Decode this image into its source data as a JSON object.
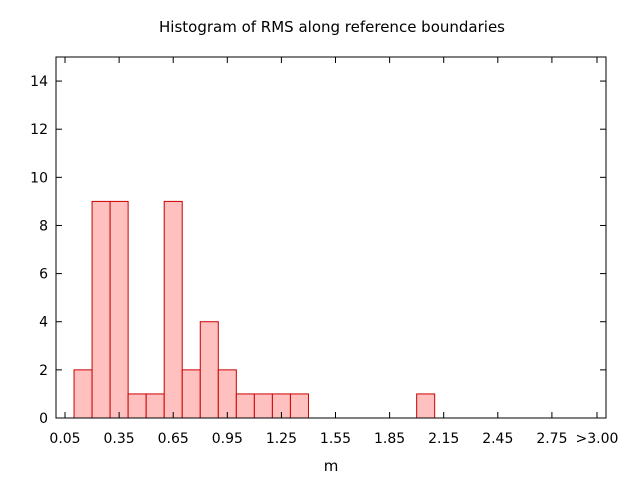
{
  "chart_data": {
    "type": "bar",
    "title": "Histogram of RMS along reference boundaries",
    "xlabel": "m",
    "ylabel": "",
    "xlim": [
      0.0,
      3.05
    ],
    "ylim": [
      0,
      15
    ],
    "x_ticks": [
      {
        "value": 0.05,
        "label": "0.05"
      },
      {
        "value": 0.35,
        "label": "0.35"
      },
      {
        "value": 0.65,
        "label": "0.65"
      },
      {
        "value": 0.95,
        "label": "0.95"
      },
      {
        "value": 1.25,
        "label": "1.25"
      },
      {
        "value": 1.55,
        "label": "1.55"
      },
      {
        "value": 1.85,
        "label": "1.85"
      },
      {
        "value": 2.15,
        "label": "2.15"
      },
      {
        "value": 2.45,
        "label": "2.45"
      },
      {
        "value": 2.75,
        "label": "2.75"
      },
      {
        "value": 3.0,
        "label": ">3.00"
      }
    ],
    "y_ticks": [
      {
        "value": 0,
        "label": "0"
      },
      {
        "value": 2,
        "label": "2"
      },
      {
        "value": 4,
        "label": "4"
      },
      {
        "value": 6,
        "label": "6"
      },
      {
        "value": 8,
        "label": "8"
      },
      {
        "value": 10,
        "label": "10"
      },
      {
        "value": 12,
        "label": "12"
      },
      {
        "value": 14,
        "label": "14"
      }
    ],
    "bin_width": 0.1,
    "bars": [
      {
        "x0": 0.1,
        "count": 2
      },
      {
        "x0": 0.2,
        "count": 9
      },
      {
        "x0": 0.3,
        "count": 9
      },
      {
        "x0": 0.4,
        "count": 1
      },
      {
        "x0": 0.5,
        "count": 1
      },
      {
        "x0": 0.6,
        "count": 9
      },
      {
        "x0": 0.7,
        "count": 2
      },
      {
        "x0": 0.8,
        "count": 4
      },
      {
        "x0": 0.9,
        "count": 2
      },
      {
        "x0": 1.0,
        "count": 1
      },
      {
        "x0": 1.1,
        "count": 1
      },
      {
        "x0": 1.2,
        "count": 1
      },
      {
        "x0": 1.3,
        "count": 1
      },
      {
        "x0": 2.0,
        "count": 1
      }
    ],
    "bar_fill": "#ffc0c0",
    "bar_stroke": "#cc0000",
    "grid": false,
    "legend": "none"
  }
}
